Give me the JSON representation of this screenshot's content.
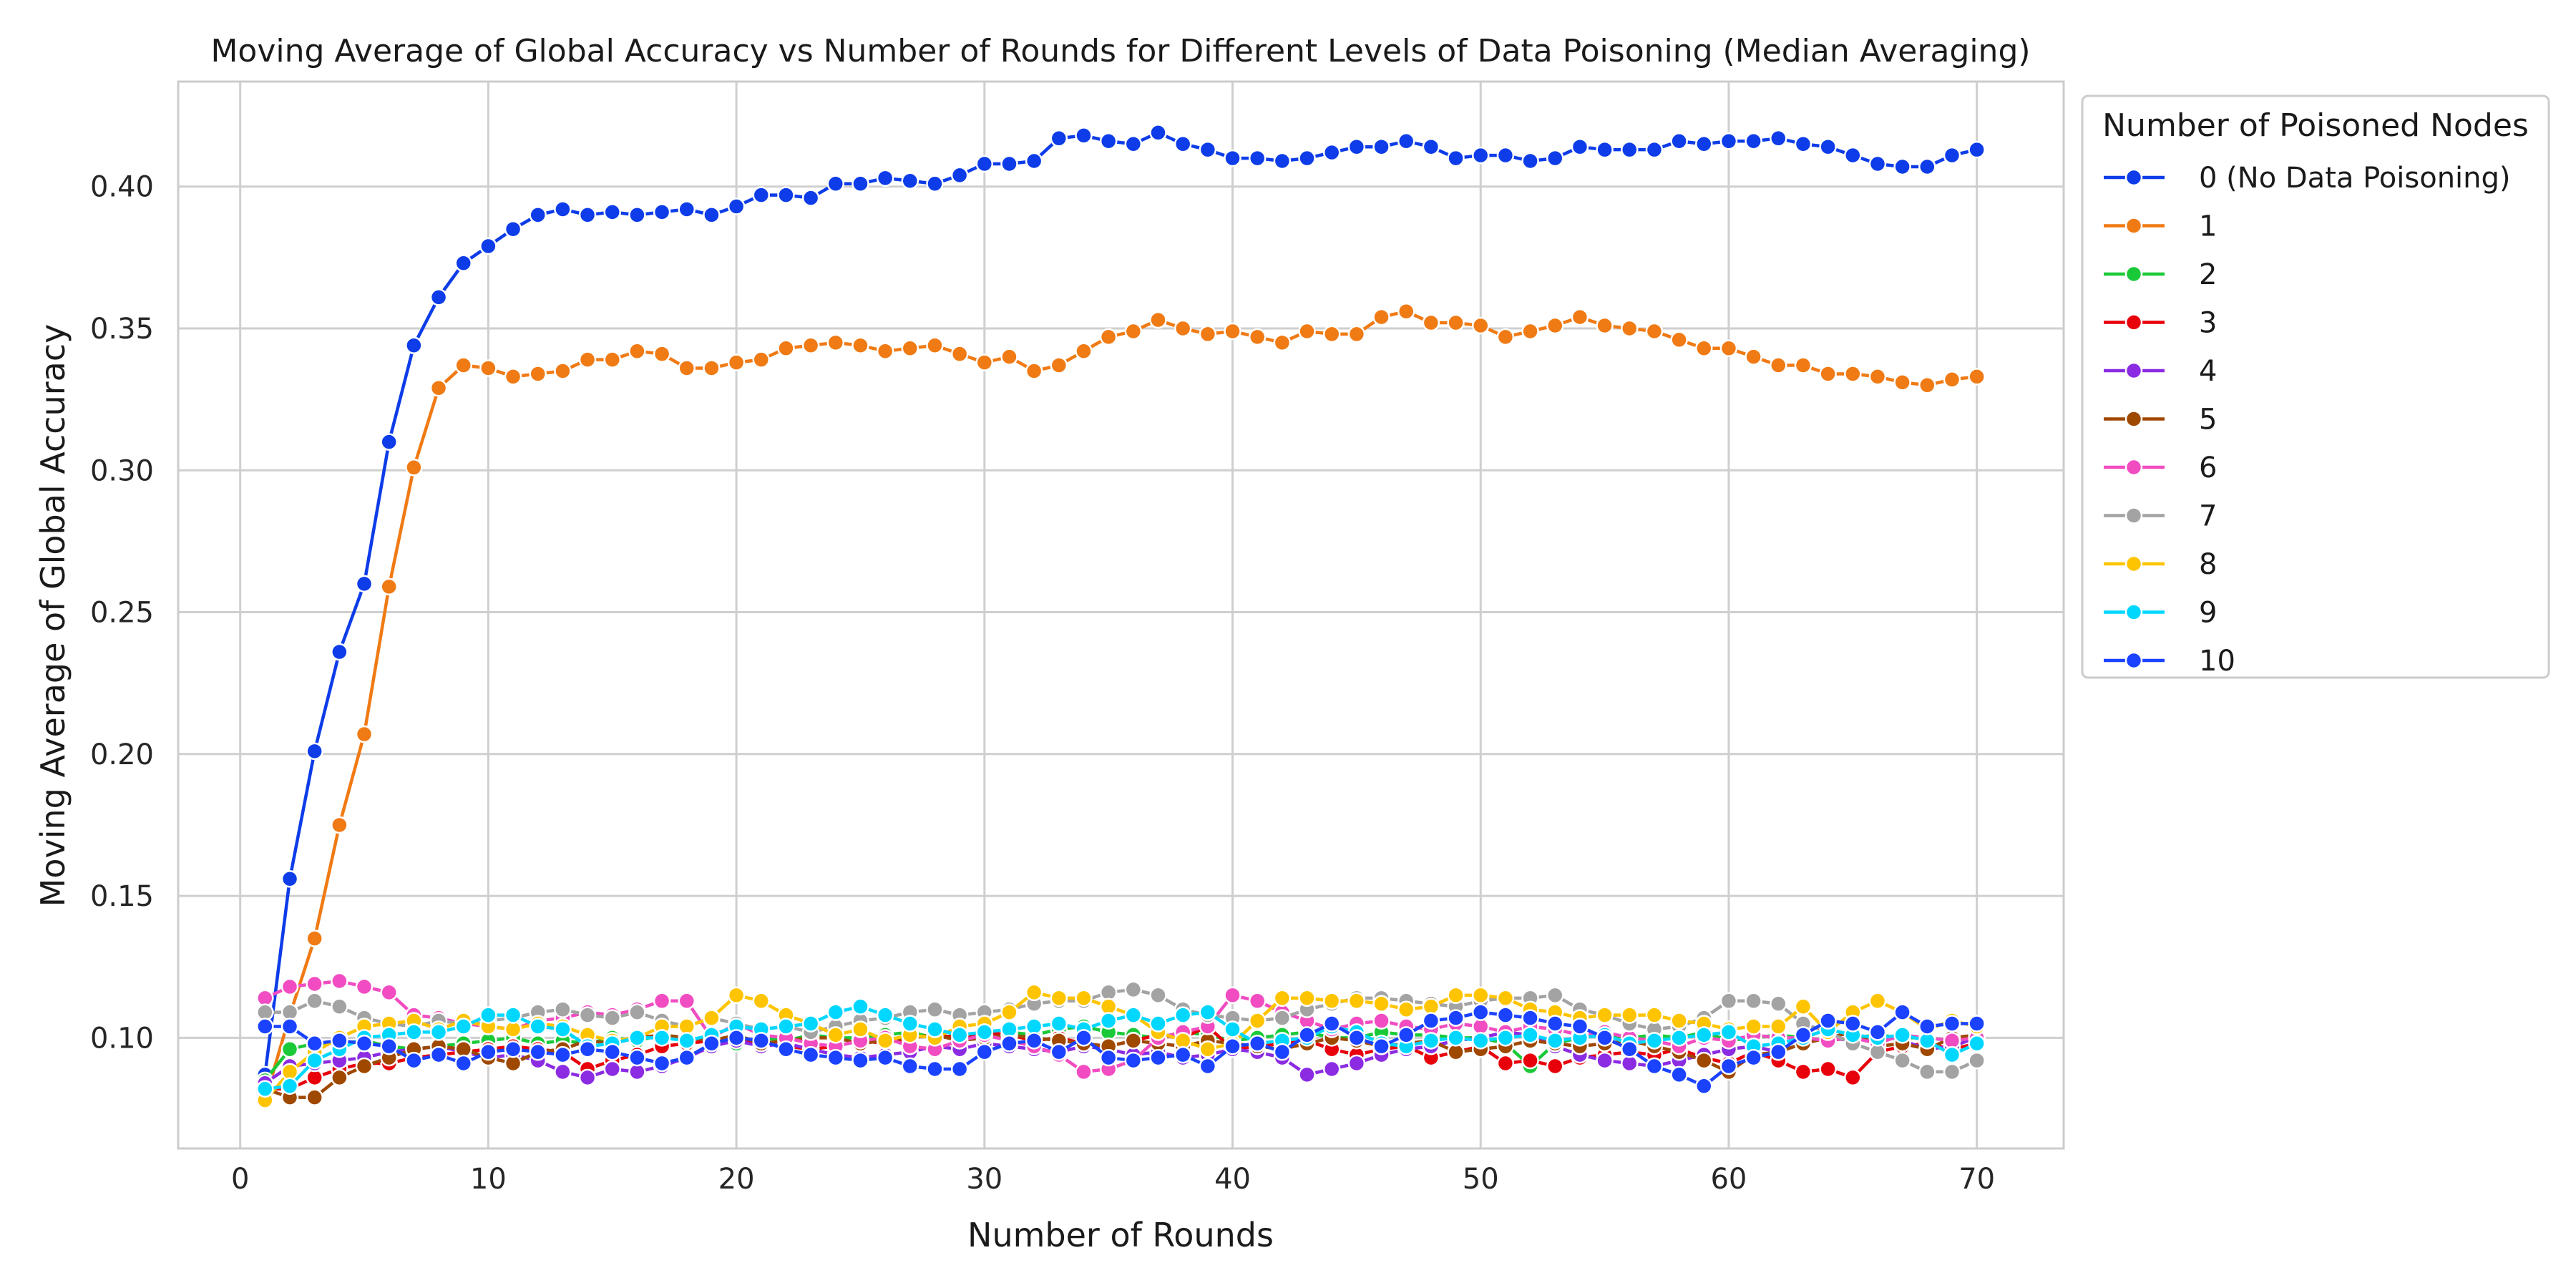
{
  "chart_data": {
    "type": "line",
    "title": "Moving Average of Global Accuracy vs Number of Rounds for Different Levels of Data Poisoning (Median Averaging)",
    "xlabel": "Number of Rounds",
    "ylabel": "Moving Average of Global Accuracy",
    "xlim": [
      -2.5,
      73.5
    ],
    "ylim": [
      0.061,
      0.437
    ],
    "xticks": [
      0,
      10,
      20,
      30,
      40,
      50,
      60,
      70
    ],
    "xtick_labels": [
      "0",
      "10",
      "20",
      "30",
      "40",
      "50",
      "60",
      "70"
    ],
    "yticks": [
      0.1,
      0.15,
      0.2,
      0.25,
      0.3,
      0.35,
      0.4
    ],
    "ytick_labels": [
      "0.10",
      "0.15",
      "0.20",
      "0.25",
      "0.30",
      "0.35",
      "0.40"
    ],
    "grid": true,
    "legend_title": "Number of Poisoned Nodes",
    "legend_position": "outside upper right",
    "x": [
      1,
      2,
      3,
      4,
      5,
      6,
      7,
      8,
      9,
      10,
      11,
      12,
      13,
      14,
      15,
      16,
      17,
      18,
      19,
      20,
      21,
      22,
      23,
      24,
      25,
      26,
      27,
      28,
      29,
      30,
      31,
      32,
      33,
      34,
      35,
      36,
      37,
      38,
      39,
      40,
      41,
      42,
      43,
      44,
      45,
      46,
      47,
      48,
      49,
      50,
      51,
      52,
      53,
      54,
      55,
      56,
      57,
      58,
      59,
      60,
      61,
      62,
      63,
      64,
      65,
      66,
      67,
      68,
      69,
      70
    ],
    "series": [
      {
        "name": "0 (No Data Poisoning)",
        "color": "#0d3ce8",
        "values": [
          0.087,
          0.156,
          0.201,
          0.236,
          0.26,
          0.31,
          0.344,
          0.361,
          0.373,
          0.379,
          0.385,
          0.39,
          0.392,
          0.39,
          0.391,
          0.39,
          0.391,
          0.392,
          0.39,
          0.393,
          0.397,
          0.397,
          0.396,
          0.401,
          0.401,
          0.403,
          0.402,
          0.401,
          0.404,
          0.408,
          0.408,
          0.409,
          0.417,
          0.418,
          0.416,
          0.415,
          0.419,
          0.415,
          0.413,
          0.41,
          0.41,
          0.409,
          0.41,
          0.412,
          0.414,
          0.414,
          0.416,
          0.414,
          0.41,
          0.411,
          0.411,
          0.409,
          0.41,
          0.414,
          0.413,
          0.413,
          0.413,
          0.416,
          0.415,
          0.416,
          0.416,
          0.417,
          0.415,
          0.414,
          0.411,
          0.408,
          0.407,
          0.407,
          0.411,
          0.413
        ]
      },
      {
        "name": "1",
        "color": "#f07a14",
        "values": [
          0.078,
          0.108,
          0.135,
          0.175,
          0.207,
          0.259,
          0.301,
          0.329,
          0.337,
          0.336,
          0.333,
          0.334,
          0.335,
          0.339,
          0.339,
          0.342,
          0.341,
          0.336,
          0.336,
          0.338,
          0.339,
          0.343,
          0.344,
          0.345,
          0.344,
          0.342,
          0.343,
          0.344,
          0.341,
          0.338,
          0.34,
          0.335,
          0.337,
          0.342,
          0.347,
          0.349,
          0.353,
          0.35,
          0.348,
          0.349,
          0.347,
          0.345,
          0.349,
          0.348,
          0.348,
          0.354,
          0.356,
          0.352,
          0.352,
          0.351,
          0.347,
          0.349,
          0.351,
          0.354,
          0.351,
          0.35,
          0.349,
          0.346,
          0.343,
          0.343,
          0.34,
          0.337,
          0.337,
          0.334,
          0.334,
          0.333,
          0.331,
          0.33,
          0.332,
          0.333
        ]
      },
      {
        "name": "2",
        "color": "#1ac938",
        "values": [
          0.085,
          0.096,
          0.098,
          0.098,
          0.099,
          0.097,
          0.096,
          0.097,
          0.098,
          0.099,
          0.1,
          0.098,
          0.099,
          0.098,
          0.1,
          0.099,
          0.101,
          0.1,
          0.099,
          0.098,
          0.1,
          0.099,
          0.101,
          0.1,
          0.1,
          0.101,
          0.102,
          0.1,
          0.101,
          0.1,
          0.102,
          0.101,
          0.103,
          0.104,
          0.102,
          0.101,
          0.1,
          0.102,
          0.101,
          0.099,
          0.1,
          0.101,
          0.102,
          0.1,
          0.1,
          0.102,
          0.101,
          0.101,
          0.1,
          0.1,
          0.098,
          0.09,
          0.098,
          0.1,
          0.101,
          0.1,
          0.101,
          0.1,
          0.102,
          0.099,
          0.1,
          0.101,
          0.1,
          0.099,
          0.1,
          0.101,
          0.1,
          0.1,
          0.099,
          0.1
        ]
      },
      {
        "name": "3",
        "color": "#e8000b",
        "values": [
          0.082,
          0.082,
          0.086,
          0.089,
          0.091,
          0.091,
          0.093,
          0.094,
          0.095,
          0.096,
          0.097,
          0.096,
          0.095,
          0.089,
          0.092,
          0.094,
          0.097,
          0.098,
          0.099,
          0.1,
          0.098,
          0.097,
          0.096,
          0.097,
          0.099,
          0.098,
          0.1,
          0.101,
          0.1,
          0.102,
          0.101,
          0.099,
          0.1,
          0.098,
          0.097,
          0.099,
          0.101,
          0.1,
          0.104,
          0.096,
          0.097,
          0.098,
          0.099,
          0.096,
          0.094,
          0.096,
          0.097,
          0.093,
          0.095,
          0.097,
          0.091,
          0.092,
          0.09,
          0.093,
          0.094,
          0.095,
          0.094,
          0.096,
          0.093,
          0.091,
          0.095,
          0.092,
          0.088,
          0.089,
          0.086,
          0.095,
          0.097,
          0.098,
          0.096,
          0.098
        ]
      },
      {
        "name": "4",
        "color": "#8b2be2",
        "values": [
          0.084,
          0.09,
          0.091,
          0.092,
          0.093,
          0.095,
          0.096,
          0.097,
          0.095,
          0.093,
          0.094,
          0.092,
          0.088,
          0.086,
          0.089,
          0.088,
          0.09,
          0.093,
          0.097,
          0.099,
          0.097,
          0.098,
          0.096,
          0.094,
          0.093,
          0.094,
          0.095,
          0.097,
          0.096,
          0.098,
          0.097,
          0.096,
          0.095,
          0.097,
          0.096,
          0.094,
          0.095,
          0.093,
          0.094,
          0.096,
          0.095,
          0.093,
          0.087,
          0.089,
          0.091,
          0.094,
          0.096,
          0.097,
          0.099,
          0.1,
          0.102,
          0.101,
          0.097,
          0.094,
          0.092,
          0.091,
          0.09,
          0.092,
          0.094,
          0.096,
          0.097,
          0.095,
          0.098,
          0.1,
          0.099,
          0.101,
          0.099,
          0.096,
          0.097,
          0.1
        ]
      },
      {
        "name": "5",
        "color": "#9f4800",
        "values": [
          0.082,
          0.079,
          0.079,
          0.086,
          0.09,
          0.093,
          0.096,
          0.097,
          0.096,
          0.093,
          0.091,
          0.095,
          0.096,
          0.099,
          0.098,
          0.1,
          0.101,
          0.1,
          0.099,
          0.101,
          0.098,
          0.099,
          0.1,
          0.1,
          0.098,
          0.099,
          0.1,
          0.101,
          0.099,
          0.1,
          0.101,
          0.1,
          0.099,
          0.098,
          0.097,
          0.099,
          0.098,
          0.097,
          0.099,
          0.098,
          0.097,
          0.096,
          0.098,
          0.1,
          0.099,
          0.097,
          0.098,
          0.099,
          0.095,
          0.096,
          0.097,
          0.099,
          0.098,
          0.097,
          0.098,
          0.099,
          0.097,
          0.095,
          0.092,
          0.088,
          0.094,
          0.095,
          0.098,
          0.1,
          0.102,
          0.097,
          0.098,
          0.096,
          0.1,
          0.101
        ]
      },
      {
        "name": "6",
        "color": "#f14cc1",
        "values": [
          0.114,
          0.118,
          0.119,
          0.12,
          0.118,
          0.116,
          0.108,
          0.107,
          0.105,
          0.104,
          0.103,
          0.106,
          0.107,
          0.109,
          0.108,
          0.11,
          0.113,
          0.113,
          0.1,
          0.105,
          0.101,
          0.1,
          0.098,
          0.097,
          0.099,
          0.1,
          0.097,
          0.096,
          0.099,
          0.101,
          0.099,
          0.097,
          0.094,
          0.088,
          0.089,
          0.092,
          0.1,
          0.102,
          0.104,
          0.115,
          0.113,
          0.109,
          0.106,
          0.103,
          0.105,
          0.106,
          0.104,
          0.103,
          0.105,
          0.104,
          0.102,
          0.104,
          0.103,
          0.101,
          0.102,
          0.1,
          0.099,
          0.097,
          0.1,
          0.099,
          0.101,
          0.1,
          0.1,
          0.099,
          0.1,
          0.098,
          0.101,
          0.1,
          0.099,
          0.1
        ]
      },
      {
        "name": "7",
        "color": "#a3a3a3",
        "values": [
          0.109,
          0.109,
          0.113,
          0.111,
          0.107,
          0.105,
          0.104,
          0.106,
          0.105,
          0.106,
          0.107,
          0.109,
          0.11,
          0.108,
          0.107,
          0.109,
          0.106,
          0.104,
          0.107,
          0.105,
          0.103,
          0.104,
          0.102,
          0.104,
          0.106,
          0.107,
          0.109,
          0.11,
          0.108,
          0.109,
          0.11,
          0.112,
          0.113,
          0.113,
          0.116,
          0.117,
          0.115,
          0.11,
          0.108,
          0.107,
          0.106,
          0.107,
          0.11,
          0.112,
          0.114,
          0.114,
          0.113,
          0.112,
          0.111,
          0.113,
          0.114,
          0.114,
          0.115,
          0.11,
          0.108,
          0.105,
          0.103,
          0.104,
          0.107,
          0.113,
          0.113,
          0.112,
          0.105,
          0.102,
          0.098,
          0.095,
          0.092,
          0.088,
          0.088,
          0.092
        ]
      },
      {
        "name": "8",
        "color": "#ffc400",
        "values": [
          0.078,
          0.088,
          0.095,
          0.1,
          0.104,
          0.105,
          0.106,
          0.103,
          0.106,
          0.104,
          0.103,
          0.105,
          0.104,
          0.101,
          0.099,
          0.1,
          0.104,
          0.104,
          0.107,
          0.115,
          0.113,
          0.108,
          0.105,
          0.101,
          0.103,
          0.099,
          0.101,
          0.1,
          0.104,
          0.105,
          0.109,
          0.116,
          0.114,
          0.114,
          0.111,
          0.108,
          0.102,
          0.099,
          0.096,
          0.098,
          0.106,
          0.114,
          0.114,
          0.113,
          0.113,
          0.112,
          0.11,
          0.111,
          0.115,
          0.115,
          0.114,
          0.11,
          0.109,
          0.107,
          0.108,
          0.108,
          0.108,
          0.106,
          0.105,
          0.103,
          0.104,
          0.104,
          0.111,
          0.102,
          0.109,
          0.113,
          0.109,
          0.103,
          0.106,
          0.104
        ]
      },
      {
        "name": "9",
        "color": "#00d7ff",
        "values": [
          0.082,
          0.083,
          0.092,
          0.096,
          0.1,
          0.101,
          0.102,
          0.102,
          0.104,
          0.108,
          0.108,
          0.104,
          0.103,
          0.097,
          0.098,
          0.1,
          0.1,
          0.099,
          0.101,
          0.104,
          0.103,
          0.104,
          0.105,
          0.109,
          0.111,
          0.108,
          0.105,
          0.103,
          0.101,
          0.102,
          0.103,
          0.104,
          0.105,
          0.103,
          0.106,
          0.108,
          0.105,
          0.108,
          0.109,
          0.103,
          0.098,
          0.099,
          0.1,
          0.104,
          0.102,
          0.098,
          0.097,
          0.099,
          0.1,
          0.099,
          0.1,
          0.101,
          0.099,
          0.1,
          0.101,
          0.098,
          0.099,
          0.1,
          0.101,
          0.102,
          0.097,
          0.098,
          0.1,
          0.103,
          0.101,
          0.1,
          0.101,
          0.099,
          0.094,
          0.098
        ]
      },
      {
        "name": "10",
        "color": "#1a42ff",
        "values": [
          0.104,
          0.104,
          0.098,
          0.099,
          0.098,
          0.097,
          0.092,
          0.094,
          0.091,
          0.095,
          0.096,
          0.095,
          0.094,
          0.096,
          0.095,
          0.093,
          0.091,
          0.093,
          0.098,
          0.1,
          0.099,
          0.096,
          0.094,
          0.093,
          0.092,
          0.093,
          0.09,
          0.089,
          0.089,
          0.095,
          0.098,
          0.099,
          0.095,
          0.1,
          0.093,
          0.092,
          0.093,
          0.094,
          0.09,
          0.097,
          0.098,
          0.095,
          0.101,
          0.105,
          0.1,
          0.097,
          0.101,
          0.106,
          0.107,
          0.109,
          0.108,
          0.107,
          0.105,
          0.104,
          0.1,
          0.096,
          0.09,
          0.087,
          0.083,
          0.09,
          0.093,
          0.095,
          0.101,
          0.106,
          0.105,
          0.102,
          0.109,
          0.104,
          0.105,
          0.105
        ]
      }
    ]
  }
}
